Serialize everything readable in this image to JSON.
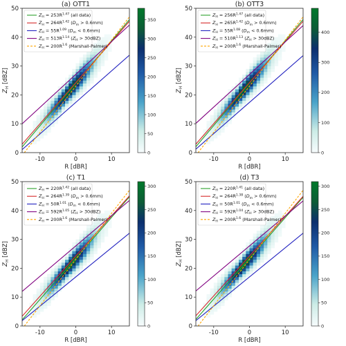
{
  "chart_data": [
    {
      "type": "heatmap",
      "title": "(a) OTT1",
      "xlabel": "R [dBR]",
      "ylabel": "Z_H [dBZ]",
      "xlim": [
        -15,
        15
      ],
      "ylim": [
        0,
        50
      ],
      "xticks": [
        -10,
        0,
        10
      ],
      "yticks": [
        0,
        10,
        20,
        30,
        40,
        50
      ],
      "colorbar": {
        "range": [
          0,
          380
        ],
        "ticks": [
          0,
          50,
          100,
          150,
          200,
          250,
          300,
          350
        ]
      },
      "fits": [
        {
          "label": "Z_H = 253R^1.47 (all data)",
          "A": 253,
          "b": 1.47,
          "color": "#2ca02c",
          "style": "solid"
        },
        {
          "label": "Z_H = 264R^1.42 (D_m > 0.6mm)",
          "A": 264,
          "b": 1.42,
          "color": "#d62728",
          "style": "solid"
        },
        {
          "label": "Z_H = 55R^1.09 (D_m < 0.6mm)",
          "A": 55,
          "b": 1.09,
          "color": "#1f1fbf",
          "style": "solid"
        },
        {
          "label": "Z_H = 513R^1.14 (Z_H > 30dBZ)",
          "A": 513,
          "b": 1.14,
          "color": "#800080",
          "style": "solid"
        },
        {
          "label": "Z_H = 200R^1.6 (Marshall-Palmer)",
          "A": 200,
          "b": 1.6,
          "color": "#ffa500",
          "style": "dashed"
        }
      ]
    },
    {
      "type": "heatmap",
      "title": "(b) OTT3",
      "xlabel": "R [dBR]",
      "ylabel": "Z_H [dBZ]",
      "xlim": [
        -15,
        15
      ],
      "ylim": [
        0,
        50
      ],
      "xticks": [
        -10,
        0,
        10
      ],
      "yticks": [
        0,
        10,
        20,
        30,
        40,
        50
      ],
      "colorbar": {
        "range": [
          0,
          480
        ],
        "ticks": [
          0,
          100,
          200,
          300,
          400
        ]
      },
      "fits": [
        {
          "label": "Z_H = 256R^1.47 (all data)",
          "A": 256,
          "b": 1.47,
          "color": "#2ca02c",
          "style": "solid"
        },
        {
          "label": "Z_H = 265R^1.42 (D_m > 0.6mm)",
          "A": 265,
          "b": 1.42,
          "color": "#d62728",
          "style": "solid"
        },
        {
          "label": "Z_H = 55R^1.08 (D_m < 0.6mm)",
          "A": 55,
          "b": 1.08,
          "color": "#1f1fbf",
          "style": "solid"
        },
        {
          "label": "Z_H = 510R^1.13 (Z_H > 30dBZ)",
          "A": 510,
          "b": 1.13,
          "color": "#800080",
          "style": "solid"
        },
        {
          "label": "Z_H = 200R^1.6 (Marshall-Palmer)",
          "A": 200,
          "b": 1.6,
          "color": "#ffa500",
          "style": "dashed"
        }
      ]
    },
    {
      "type": "heatmap",
      "title": "(c) T1",
      "xlabel": "R [dBR]",
      "ylabel": "Z_H [dBZ]",
      "xlim": [
        -15,
        15
      ],
      "ylim": [
        0,
        50
      ],
      "xticks": [
        -10,
        0,
        10
      ],
      "yticks": [
        0,
        10,
        20,
        30,
        40,
        50
      ],
      "colorbar": {
        "range": [
          0,
          310
        ],
        "ticks": [
          0,
          50,
          100,
          150,
          200,
          250,
          300
        ]
      },
      "fits": [
        {
          "label": "Z_H = 220R^1.42 (all data)",
          "A": 220,
          "b": 1.42,
          "color": "#2ca02c",
          "style": "solid"
        },
        {
          "label": "Z_H = 264R^1.39 (D_m > 0.6mm)",
          "A": 264,
          "b": 1.39,
          "color": "#d62728",
          "style": "solid"
        },
        {
          "label": "Z_H = 50R^1.01 (D_m < 0.6mm)",
          "A": 50,
          "b": 1.01,
          "color": "#1f1fbf",
          "style": "solid"
        },
        {
          "label": "Z_H = 592R^1.05 (Z_H > 30dBZ)",
          "A": 592,
          "b": 1.05,
          "color": "#800080",
          "style": "solid"
        },
        {
          "label": "Z_H = 200R^1.6 (Marshall-Palmer)",
          "A": 200,
          "b": 1.6,
          "color": "#ffa500",
          "style": "dashed"
        }
      ]
    },
    {
      "type": "heatmap",
      "title": "(d) T3",
      "xlabel": "R [dBR]",
      "ylabel": "Z_H [dBZ]",
      "xlim": [
        -15,
        15
      ],
      "ylim": [
        0,
        50
      ],
      "xticks": [
        -10,
        0,
        10
      ],
      "yticks": [
        0,
        10,
        20,
        30,
        40,
        50
      ],
      "colorbar": {
        "range": [
          0,
          310
        ],
        "ticks": [
          0,
          50,
          100,
          150,
          200,
          250,
          300
        ]
      },
      "fits": [
        {
          "label": "Z_H = 220R^1.41 (all data)",
          "A": 220,
          "b": 1.41,
          "color": "#2ca02c",
          "style": "solid"
        },
        {
          "label": "Z_H = 264R^1.38 (D_m > 0.6mm)",
          "A": 264,
          "b": 1.38,
          "color": "#d62728",
          "style": "solid"
        },
        {
          "label": "Z_H = 50R^1.01 (D_m < 0.6mm)",
          "A": 50,
          "b": 1.01,
          "color": "#1f1fbf",
          "style": "solid"
        },
        {
          "label": "Z_H = 592R^1.04 (Z_H > 30dBZ)",
          "A": 592,
          "b": 1.04,
          "color": "#800080",
          "style": "solid"
        },
        {
          "label": "Z_H = 200R^1.6 (Marshall-Palmer)",
          "A": 200,
          "b": 1.6,
          "color": "#ffa500",
          "style": "dashed"
        }
      ]
    }
  ]
}
